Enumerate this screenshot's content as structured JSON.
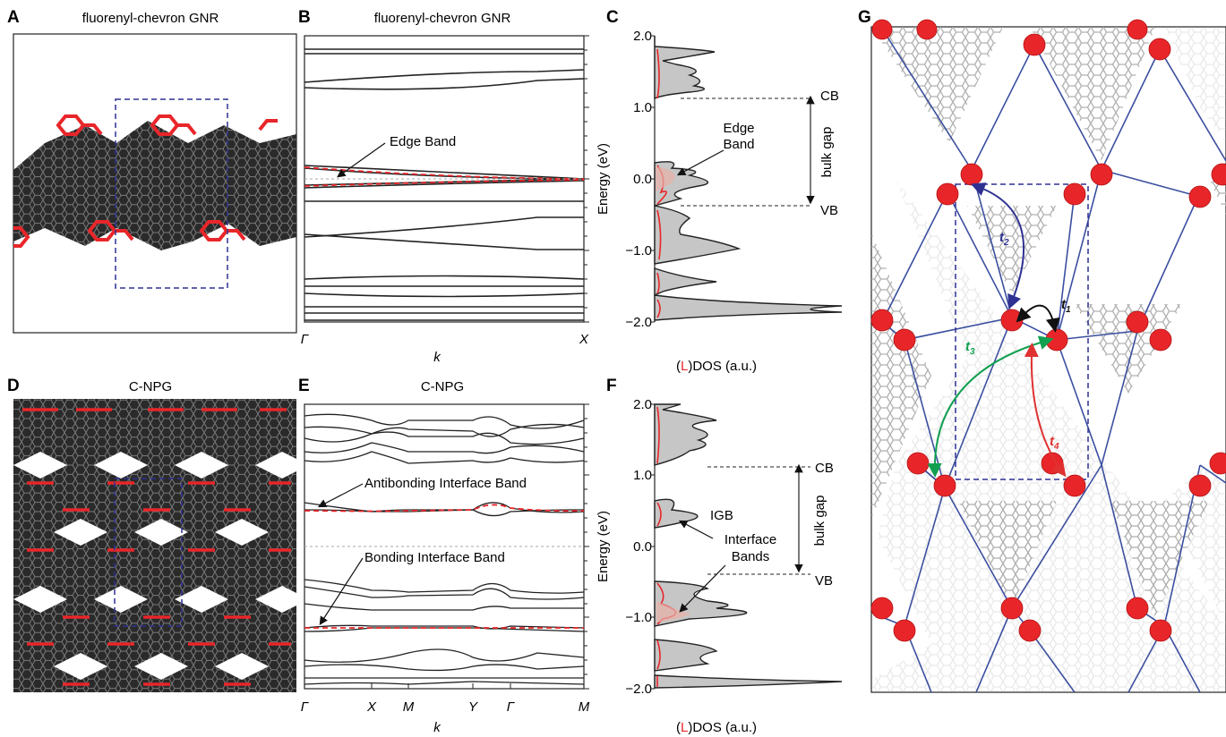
{
  "panels": {
    "A": {
      "label": "A",
      "title": "fluorenyl-chevron GNR"
    },
    "B": {
      "label": "B",
      "title": "fluorenyl-chevron GNR",
      "xlabel": "k",
      "ticks": [
        "Γ",
        "X"
      ],
      "annotation": "Edge Band"
    },
    "C": {
      "label": "C",
      "ylabel": "Energy (eV)",
      "yticks": [
        "2.0",
        "1.0",
        "0.0",
        "−1.0",
        "−2.0"
      ],
      "xlabel_pre": "(",
      "xlabel_L": "L",
      "xlabel_post": ")DOS (a.u.)",
      "cb": "CB",
      "vb": "VB",
      "gap": "bulk gap",
      "edge1": "Edge",
      "edge2": "Band"
    },
    "D": {
      "label": "D",
      "title": "C-NPG"
    },
    "E": {
      "label": "E",
      "title": "C-NPG",
      "xlabel": "k",
      "ticks": [
        "Γ",
        "X",
        "M",
        "Y",
        "Γ",
        "M"
      ],
      "anti": "Antibonding Interface Band",
      "bond": "Bonding Interface Band"
    },
    "F": {
      "label": "F",
      "ylabel": "Energy (eV)",
      "yticks": [
        "2.0",
        "1.0",
        "0.0",
        "−1.0",
        "−2.0"
      ],
      "xlabel_pre": "(",
      "xlabel_L": "L",
      "xlabel_post": ")DOS (a.u.)",
      "cb": "CB",
      "vb": "VB",
      "gap": "bulk gap",
      "igb": "IGB",
      "if1": "Interface",
      "if2": "Bands"
    },
    "G": {
      "label": "G",
      "t1": "t",
      "t1s": "1",
      "t2": "t",
      "t2s": "2",
      "t3": "t",
      "t3s": "3",
      "t4": "t",
      "t4s": "4"
    }
  },
  "colors": {
    "red": "#e8262a",
    "black": "#222222",
    "gray_fill": "#c6c6c6",
    "navy": "#2e3192",
    "green": "#10a050",
    "lattice": "#3b4fa0",
    "hop_red": "#e03030"
  }
}
